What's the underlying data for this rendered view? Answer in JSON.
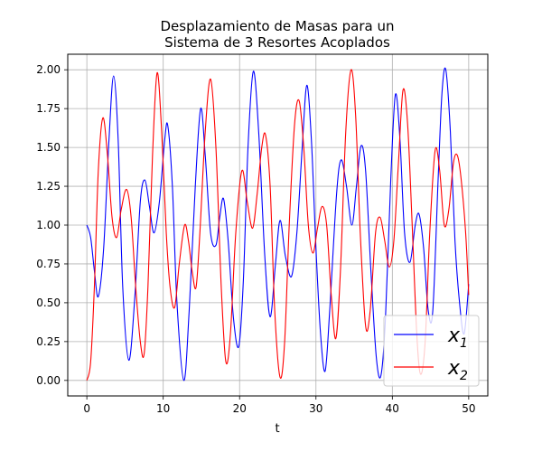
{
  "chart_data": {
    "type": "line",
    "title_lines": [
      "Desplazamiento de Masas para un",
      "Sistema de 3 Resortes Acoplados"
    ],
    "xlabel": "t",
    "ylabel": "",
    "xlim": [
      -2.5,
      52.5
    ],
    "ylim": [
      -0.1,
      2.1
    ],
    "grid": true,
    "legend_position": "lower-right",
    "x_ticks": [
      0,
      10,
      20,
      30,
      40,
      50
    ],
    "x_tick_labels": [
      "0",
      "10",
      "20",
      "30",
      "40",
      "50"
    ],
    "y_ticks": [
      0,
      0.25,
      0.5,
      0.75,
      1.0,
      1.25,
      1.5,
      1.75,
      2.0
    ],
    "y_tick_labels": [
      "0.00",
      "0.25",
      "0.50",
      "0.75",
      "1.00",
      "1.25",
      "1.50",
      "1.75",
      "2.00"
    ],
    "series": [
      {
        "name": "x1",
        "color": "#0000ff",
        "points": [
          [
            0,
            1.0
          ],
          [
            0.5,
            0.92
          ],
          [
            1.0,
            0.7
          ],
          [
            1.5,
            0.54
          ],
          [
            2.2,
            0.85
          ],
          [
            2.9,
            1.55
          ],
          [
            3.5,
            1.96
          ],
          [
            4.1,
            1.55
          ],
          [
            4.7,
            0.6
          ],
          [
            5.5,
            0.13
          ],
          [
            6.3,
            0.55
          ],
          [
            7.0,
            1.15
          ],
          [
            7.6,
            1.29
          ],
          [
            8.2,
            1.12
          ],
          [
            8.8,
            0.95
          ],
          [
            9.5,
            1.15
          ],
          [
            10.2,
            1.55
          ],
          [
            10.6,
            1.64
          ],
          [
            11.2,
            1.25
          ],
          [
            11.8,
            0.5
          ],
          [
            12.7,
            0.0
          ],
          [
            13.4,
            0.45
          ],
          [
            14.2,
            1.25
          ],
          [
            14.9,
            1.75
          ],
          [
            15.5,
            1.45
          ],
          [
            16.2,
            0.95
          ],
          [
            16.9,
            0.87
          ],
          [
            17.4,
            1.05
          ],
          [
            17.9,
            1.17
          ],
          [
            18.5,
            0.9
          ],
          [
            19.2,
            0.4
          ],
          [
            19.9,
            0.22
          ],
          [
            20.5,
            0.65
          ],
          [
            21.1,
            1.5
          ],
          [
            21.8,
            1.99
          ],
          [
            22.5,
            1.6
          ],
          [
            23.3,
            0.8
          ],
          [
            24.0,
            0.41
          ],
          [
            24.7,
            0.75
          ],
          [
            25.3,
            1.03
          ],
          [
            26.0,
            0.8
          ],
          [
            26.8,
            0.67
          ],
          [
            27.5,
            0.95
          ],
          [
            28.2,
            1.5
          ],
          [
            28.8,
            1.9
          ],
          [
            29.4,
            1.55
          ],
          [
            30.0,
            0.85
          ],
          [
            30.6,
            0.3
          ],
          [
            31.2,
            0.06
          ],
          [
            31.8,
            0.45
          ],
          [
            32.7,
            1.2
          ],
          [
            33.3,
            1.42
          ],
          [
            34.0,
            1.25
          ],
          [
            34.7,
            1.0
          ],
          [
            35.3,
            1.25
          ],
          [
            35.9,
            1.51
          ],
          [
            36.5,
            1.35
          ],
          [
            37.2,
            0.7
          ],
          [
            37.9,
            0.15
          ],
          [
            38.5,
            0.03
          ],
          [
            39.1,
            0.4
          ],
          [
            39.8,
            1.3
          ],
          [
            40.4,
            1.84
          ],
          [
            41.0,
            1.55
          ],
          [
            41.6,
            0.95
          ],
          [
            42.3,
            0.76
          ],
          [
            43.0,
            1.0
          ],
          [
            43.5,
            1.07
          ],
          [
            44.1,
            0.85
          ],
          [
            44.7,
            0.45
          ],
          [
            45.3,
            0.45
          ],
          [
            46.0,
            1.3
          ],
          [
            46.5,
            1.85
          ],
          [
            47.0,
            2.0
          ],
          [
            47.6,
            1.6
          ],
          [
            48.2,
            0.9
          ],
          [
            48.8,
            0.5
          ],
          [
            49.4,
            0.3
          ],
          [
            50.0,
            0.62
          ]
        ]
      },
      {
        "name": "x2",
        "color": "#ff0000",
        "points": [
          [
            0,
            0.0
          ],
          [
            0.5,
            0.12
          ],
          [
            1.0,
            0.62
          ],
          [
            1.5,
            1.35
          ],
          [
            2.1,
            1.69
          ],
          [
            2.7,
            1.45
          ],
          [
            3.3,
            1.05
          ],
          [
            3.9,
            0.92
          ],
          [
            4.5,
            1.1
          ],
          [
            5.2,
            1.23
          ],
          [
            5.8,
            1.05
          ],
          [
            6.4,
            0.6
          ],
          [
            7.0,
            0.25
          ],
          [
            7.5,
            0.17
          ],
          [
            8.0,
            0.6
          ],
          [
            8.6,
            1.45
          ],
          [
            9.2,
            1.98
          ],
          [
            9.8,
            1.6
          ],
          [
            10.4,
            0.95
          ],
          [
            10.9,
            0.6
          ],
          [
            11.5,
            0.47
          ],
          [
            12.1,
            0.75
          ],
          [
            12.8,
            1.0
          ],
          [
            13.3,
            0.9
          ],
          [
            13.8,
            0.7
          ],
          [
            14.3,
            0.6
          ],
          [
            14.8,
            0.95
          ],
          [
            15.5,
            1.6
          ],
          [
            16.2,
            1.94
          ],
          [
            16.9,
            1.5
          ],
          [
            17.6,
            0.6
          ],
          [
            18.2,
            0.12
          ],
          [
            18.8,
            0.3
          ],
          [
            19.5,
            0.95
          ],
          [
            20.3,
            1.35
          ],
          [
            21.0,
            1.15
          ],
          [
            21.7,
            0.98
          ],
          [
            22.3,
            1.2
          ],
          [
            22.9,
            1.5
          ],
          [
            23.4,
            1.58
          ],
          [
            24.0,
            1.25
          ],
          [
            24.6,
            0.45
          ],
          [
            25.3,
            0.02
          ],
          [
            25.9,
            0.25
          ],
          [
            26.5,
            1.0
          ],
          [
            27.2,
            1.65
          ],
          [
            27.8,
            1.8
          ],
          [
            28.4,
            1.5
          ],
          [
            29.0,
            1.0
          ],
          [
            29.6,
            0.82
          ],
          [
            30.2,
            0.98
          ],
          [
            30.8,
            1.12
          ],
          [
            31.4,
            1.0
          ],
          [
            32.0,
            0.55
          ],
          [
            32.6,
            0.27
          ],
          [
            33.2,
            0.7
          ],
          [
            33.9,
            1.6
          ],
          [
            34.6,
            2.0
          ],
          [
            35.2,
            1.7
          ],
          [
            35.8,
            0.95
          ],
          [
            36.5,
            0.35
          ],
          [
            37.1,
            0.45
          ],
          [
            37.8,
            0.95
          ],
          [
            38.4,
            1.05
          ],
          [
            39.0,
            0.9
          ],
          [
            39.6,
            0.73
          ],
          [
            40.2,
            0.9
          ],
          [
            40.8,
            1.4
          ],
          [
            41.4,
            1.87
          ],
          [
            42.0,
            1.65
          ],
          [
            42.6,
            1.0
          ],
          [
            43.2,
            0.3
          ],
          [
            43.7,
            0.04
          ],
          [
            44.3,
            0.25
          ],
          [
            44.9,
            0.95
          ],
          [
            45.6,
            1.48
          ],
          [
            46.2,
            1.35
          ],
          [
            46.8,
            1.0
          ],
          [
            47.4,
            1.1
          ],
          [
            48.0,
            1.4
          ],
          [
            48.5,
            1.45
          ],
          [
            49.0,
            1.3
          ],
          [
            49.6,
            0.95
          ],
          [
            50.0,
            0.55
          ]
        ]
      }
    ]
  }
}
